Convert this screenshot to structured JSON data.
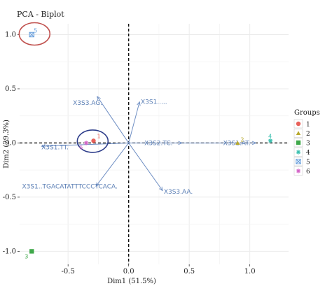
{
  "chart_data": {
    "type": "scatter",
    "title": "PCA - Biplot",
    "xlabel": "Dim1 (51.5%)",
    "ylabel": "Dim2 (29.3%)",
    "xlim": [
      -0.9,
      1.32
    ],
    "ylim": [
      -1.12,
      1.1
    ],
    "x_ticks": [
      -0.5,
      0.0,
      0.5,
      1.0
    ],
    "x_tick_labels": [
      "-0.5",
      "0.0",
      "0.5",
      "1.0"
    ],
    "y_ticks": [
      -1.0,
      -0.5,
      0.0,
      0.5,
      1.0
    ],
    "y_tick_labels": [
      "-1.0",
      "-0.5",
      "0.0",
      "0.5",
      "1.0"
    ],
    "grid": true,
    "points": [
      {
        "label": "1",
        "group": "1",
        "x": -0.29,
        "y": 0.02
      },
      {
        "label": "2",
        "group": "2",
        "x": 0.9,
        "y": 0.0
      },
      {
        "label": "3",
        "group": "3",
        "x": -0.8,
        "y": -1.0
      },
      {
        "label": "4",
        "group": "4",
        "x": 1.17,
        "y": 0.02
      },
      {
        "label": "5",
        "group": "5",
        "x": -0.8,
        "y": 1.0
      },
      {
        "label": "6",
        "group": "6",
        "x": -0.35,
        "y": 0.0
      }
    ],
    "variables": [
      {
        "label": "X3S3.AG.",
        "x": -0.26,
        "y": 0.43,
        "lx": -0.46,
        "ly": 0.37
      },
      {
        "label": "X3S1.....",
        "x": 0.09,
        "y": 0.38,
        "lx": 0.1,
        "ly": 0.38
      },
      {
        "label": "X3S2.TC.",
        "x": 0.44,
        "y": 0.0,
        "lx": 0.13,
        "ly": 0.0
      },
      {
        "label": "X3S1.TT.",
        "x": -0.72,
        "y": -0.03,
        "lx": -0.72,
        "ly": -0.04
      },
      {
        "label": "X3S1..TGACATATTTCCCTCACA.",
        "x": -0.27,
        "y": -0.4,
        "lx": -0.88,
        "ly": -0.4
      },
      {
        "label": "X3S3.AA.",
        "x": 0.28,
        "y": -0.44,
        "lx": 0.29,
        "ly": -0.45
      },
      {
        "label": "X3S1.AT.",
        "x": 1.05,
        "y": 0.0,
        "lx": 0.78,
        "ly": 0.0
      }
    ],
    "legend": {
      "title": "Groups",
      "position": "right",
      "items": [
        {
          "label": "1",
          "color": "#e8615a",
          "shape": "circle"
        },
        {
          "label": "2",
          "color": "#b8a92d",
          "shape": "triangle"
        },
        {
          "label": "3",
          "color": "#3fa84a",
          "shape": "square"
        },
        {
          "label": "4",
          "color": "#3cc0b0",
          "shape": "star"
        },
        {
          "label": "5",
          "color": "#6fa3dd",
          "shape": "square-x"
        },
        {
          "label": "6",
          "color": "#d466c8",
          "shape": "asterisk"
        }
      ]
    },
    "highlights": [
      {
        "x": -0.8,
        "y": 1.0,
        "color": "#c0504d"
      },
      {
        "x": -0.32,
        "y": 0.01,
        "color": "#2d3d8a"
      }
    ]
  }
}
